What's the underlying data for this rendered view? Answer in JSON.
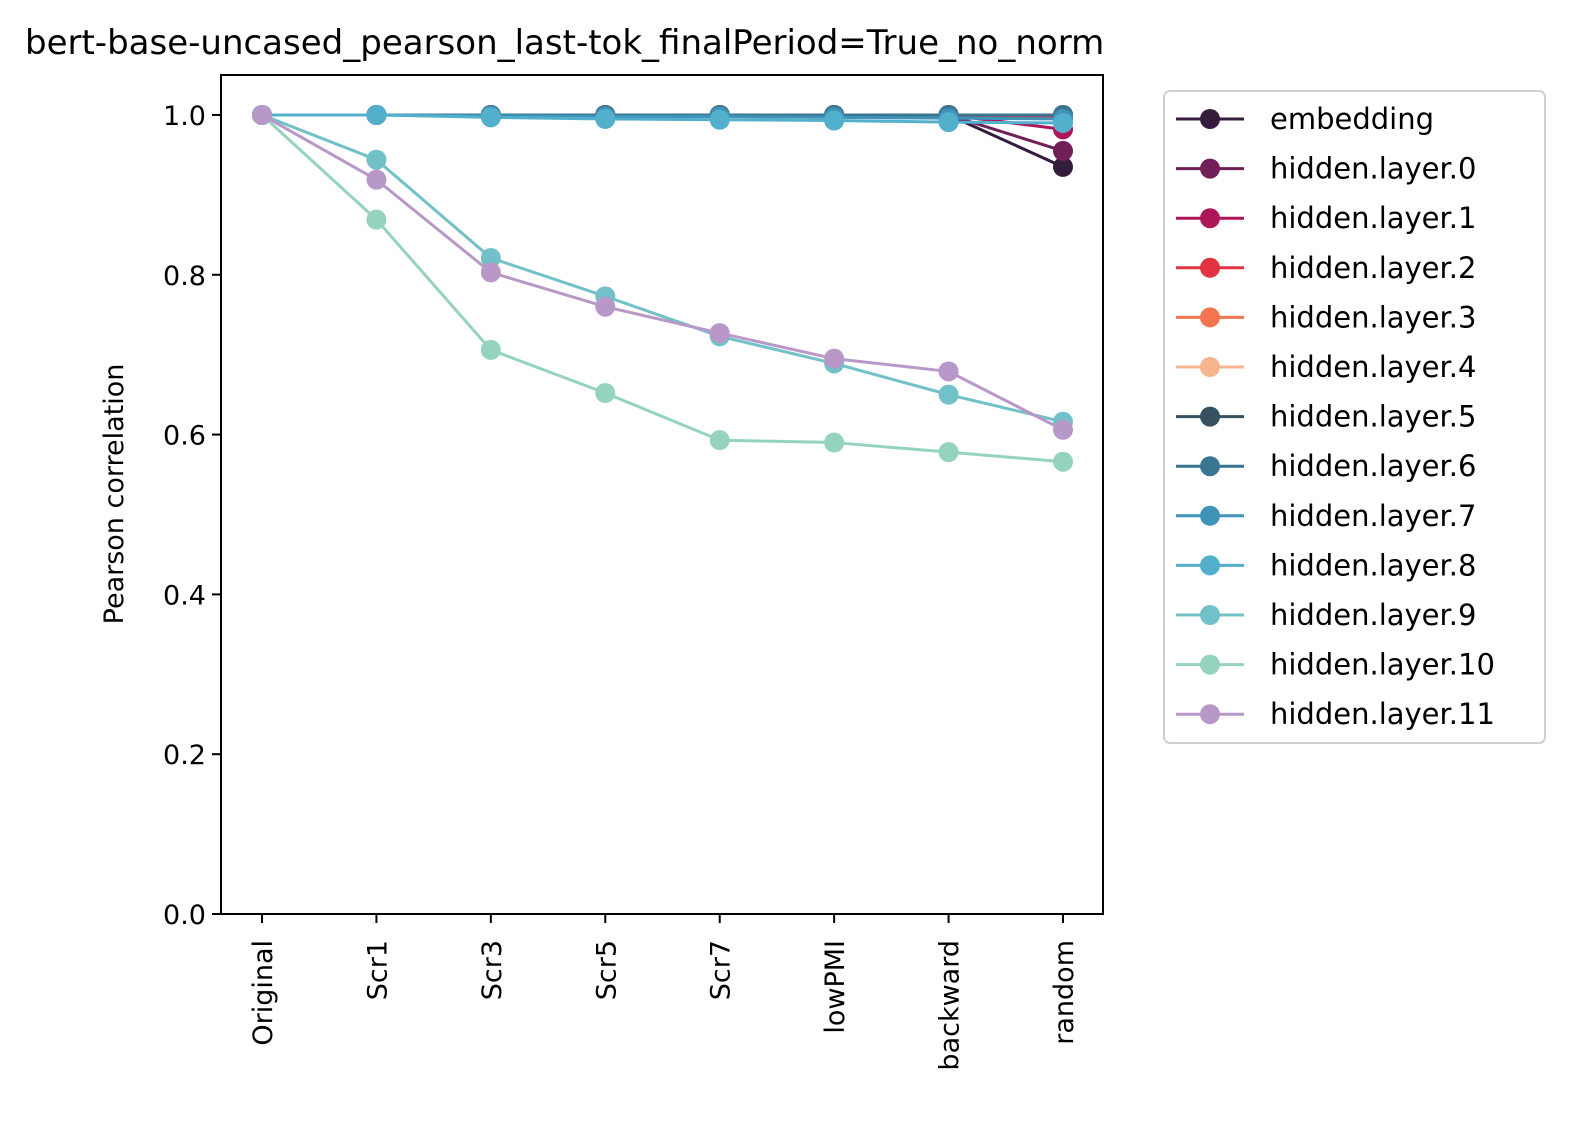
{
  "chart_data": {
    "type": "line",
    "title": "bert-base-uncased_pearson_last-tok_finalPeriod=True_no_norm",
    "xlabel": "",
    "ylabel": "Pearson correlation",
    "categories": [
      "Original",
      "Scr1",
      "Scr3",
      "Scr5",
      "Scr7",
      "lowPMI",
      "backward",
      "random"
    ],
    "ylim": [
      0.0,
      1.05
    ],
    "yticks": [
      "0.0",
      "0.2",
      "0.4",
      "0.6",
      "0.8",
      "1.0"
    ],
    "ytick_values": [
      0.0,
      0.2,
      0.4,
      0.6,
      0.8,
      1.0
    ],
    "grid": false,
    "legend_position": "outside-right",
    "series": [
      {
        "name": "embedding",
        "color": "#341c3d",
        "values": [
          1.0,
          1.0,
          1.0,
          1.0,
          1.0,
          1.0,
          1.0,
          0.935
        ]
      },
      {
        "name": "hidden.layer.0",
        "color": "#701f57",
        "values": [
          1.0,
          1.0,
          1.0,
          1.0,
          1.0,
          1.0,
          1.0,
          0.955
        ]
      },
      {
        "name": "hidden.layer.1",
        "color": "#ad1759",
        "values": [
          1.0,
          1.0,
          1.0,
          1.0,
          1.0,
          1.0,
          1.0,
          0.982
        ]
      },
      {
        "name": "hidden.layer.2",
        "color": "#e13342",
        "values": [
          1.0,
          1.0,
          1.0,
          1.0,
          1.0,
          1.0,
          1.0,
          0.997
        ]
      },
      {
        "name": "hidden.layer.3",
        "color": "#f37651",
        "values": [
          1.0,
          1.0,
          1.0,
          1.0,
          1.0,
          1.0,
          1.0,
          1.0
        ]
      },
      {
        "name": "hidden.layer.4",
        "color": "#f6b48f",
        "values": [
          1.0,
          1.0,
          1.0,
          1.0,
          1.0,
          1.0,
          1.0,
          1.0
        ]
      },
      {
        "name": "hidden.layer.5",
        "color": "#35515f",
        "values": [
          1.0,
          1.0,
          1.0,
          1.0,
          1.0,
          1.0,
          1.0,
          1.0
        ]
      },
      {
        "name": "hidden.layer.6",
        "color": "#3a7591",
        "values": [
          1.0,
          1.0,
          1.0,
          1.0,
          1.0,
          1.0,
          1.0,
          1.0
        ]
      },
      {
        "name": "hidden.layer.7",
        "color": "#3f93b8",
        "values": [
          1.0,
          1.0,
          0.999,
          0.998,
          0.998,
          0.997,
          0.996,
          0.995
        ]
      },
      {
        "name": "hidden.layer.8",
        "color": "#53b0cd",
        "values": [
          1.0,
          1.0,
          0.997,
          0.995,
          0.994,
          0.993,
          0.991,
          0.99
        ]
      },
      {
        "name": "hidden.layer.9",
        "color": "#73c1c8",
        "values": [
          1.0,
          0.944,
          0.821,
          0.773,
          0.723,
          0.689,
          0.65,
          0.616
        ]
      },
      {
        "name": "hidden.layer.10",
        "color": "#95d3c0",
        "values": [
          1.0,
          0.869,
          0.706,
          0.652,
          0.593,
          0.59,
          0.578,
          0.566
        ]
      },
      {
        "name": "hidden.layer.11",
        "color": "#b798c8",
        "values": [
          1.0,
          0.919,
          0.803,
          0.76,
          0.727,
          0.695,
          0.679,
          0.606
        ]
      }
    ]
  }
}
